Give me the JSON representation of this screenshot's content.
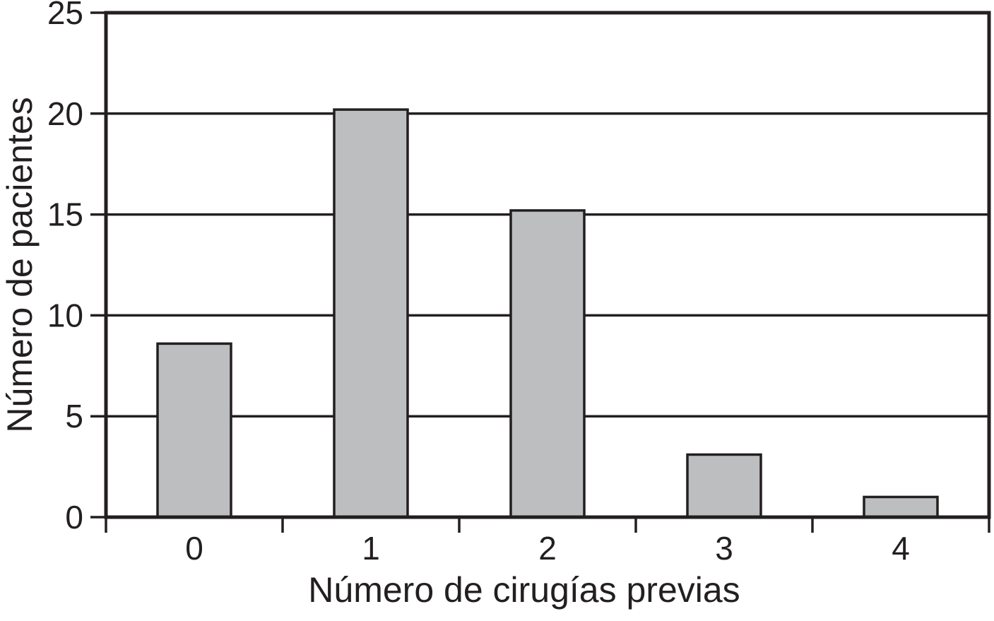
{
  "chart_data": {
    "type": "bar",
    "title": "",
    "xlabel": "Número de cirugías previas",
    "ylabel": "Número de pacientes",
    "categories": [
      "0",
      "1",
      "2",
      "3",
      "4"
    ],
    "values": [
      8.6,
      20.2,
      15.2,
      3.1,
      1.0
    ],
    "yticks": [
      0,
      5,
      10,
      15,
      20,
      25
    ],
    "ylim": [
      0,
      25
    ],
    "grid": "horizontal",
    "legend": "none",
    "colors": {
      "bar_fill": "#bcbec0",
      "line": "#231f20",
      "background": "#ffffff"
    }
  }
}
